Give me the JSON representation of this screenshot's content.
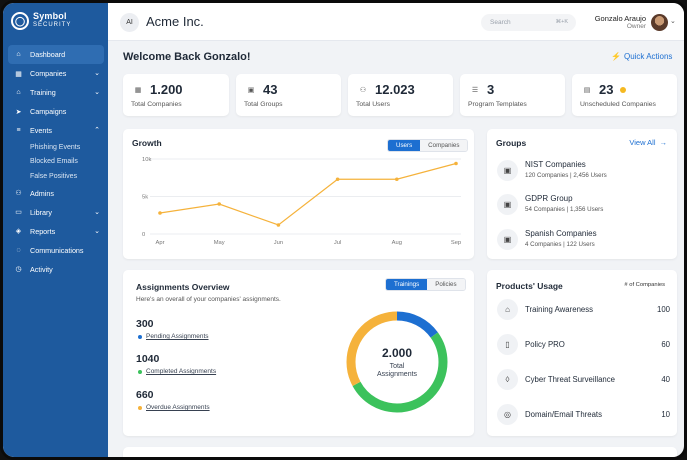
{
  "brand": {
    "name": "Symbol",
    "tagline": "SECURITY"
  },
  "sidebar": {
    "items": [
      {
        "label": "Dashboard",
        "icon": "home-icon"
      },
      {
        "label": "Companies",
        "icon": "building-icon"
      },
      {
        "label": "Training",
        "icon": "graduation-icon"
      },
      {
        "label": "Campaigns",
        "icon": "send-icon"
      },
      {
        "label": "Events",
        "icon": "list-icon"
      },
      {
        "label": "Phishing Events"
      },
      {
        "label": "Blocked Emails"
      },
      {
        "label": "False Positives"
      },
      {
        "label": "Admins",
        "icon": "users-icon"
      },
      {
        "label": "Library",
        "icon": "folder-icon"
      },
      {
        "label": "Reports",
        "icon": "tag-icon"
      },
      {
        "label": "Communications",
        "icon": "chat-icon"
      },
      {
        "label": "Activity",
        "icon": "clock-icon"
      }
    ]
  },
  "topbar": {
    "org_initials": "AI",
    "org_name": "Acme Inc.",
    "search_placeholder": "Search",
    "search_shortcut": "⌘+K",
    "user_name": "Gonzalo Araujo",
    "user_role": "Owner"
  },
  "welcome": "Welcome Back Gonzalo!",
  "quick_actions": "Quick Actions",
  "stats": [
    {
      "value": "1.200",
      "label": "Total Companies"
    },
    {
      "value": "43",
      "label": "Total Groups"
    },
    {
      "value": "12.023",
      "label": "Total Users"
    },
    {
      "value": "3",
      "label": "Program Templates"
    },
    {
      "value": "23",
      "label": "Unscheduled Companies"
    }
  ],
  "growth": {
    "title": "Growth",
    "tabs": [
      "Users",
      "Companies"
    ]
  },
  "chart_data": {
    "type": "line",
    "categories": [
      "Apr",
      "May",
      "Jun",
      "Jul",
      "Aug",
      "Sep"
    ],
    "values": [
      2800,
      4000,
      1200,
      7300,
      7300,
      9400
    ],
    "ylim": [
      0,
      10000
    ],
    "yticks": [
      "0",
      "5k",
      "10k"
    ],
    "color": "#f5b23b",
    "grid": "horizontal"
  },
  "assignments": {
    "title": "Assignments Overview",
    "subtitle": "Here's an overall of your companies' assignments.",
    "tabs": [
      "Trainings",
      "Policies"
    ],
    "items": [
      {
        "value": "300",
        "label": "Pending Assignments",
        "color": "#1d6fd1"
      },
      {
        "value": "1040",
        "label": "Completed Assignments",
        "color": "#3cc25c"
      },
      {
        "value": "660",
        "label": "Overdue Assignments",
        "color": "#f5b23b"
      }
    ],
    "total": "2.000",
    "total_label": "Total\nAssignments"
  },
  "groups": {
    "title": "Groups",
    "view_all": "View All",
    "items": [
      {
        "name": "NIST Companies",
        "sub": "120 Companies  |  2,456 Users"
      },
      {
        "name": "GDPR Group",
        "sub": "54 Companies  |  1,356 Users"
      },
      {
        "name": "Spanish Companies",
        "sub": "4 Companies  |  122 Users"
      }
    ]
  },
  "products": {
    "title": "Products' Usage",
    "col": "# of Companies",
    "items": [
      {
        "name": "Training Awareness",
        "value": "100",
        "icon": "graduation-icon"
      },
      {
        "name": "Policy PRO",
        "value": "60",
        "icon": "document-icon"
      },
      {
        "name": "Cyber Threat Surveillance",
        "value": "40",
        "icon": "shield-icon"
      },
      {
        "name": "Domain/Email Threats",
        "value": "10",
        "icon": "globe-icon"
      }
    ]
  }
}
